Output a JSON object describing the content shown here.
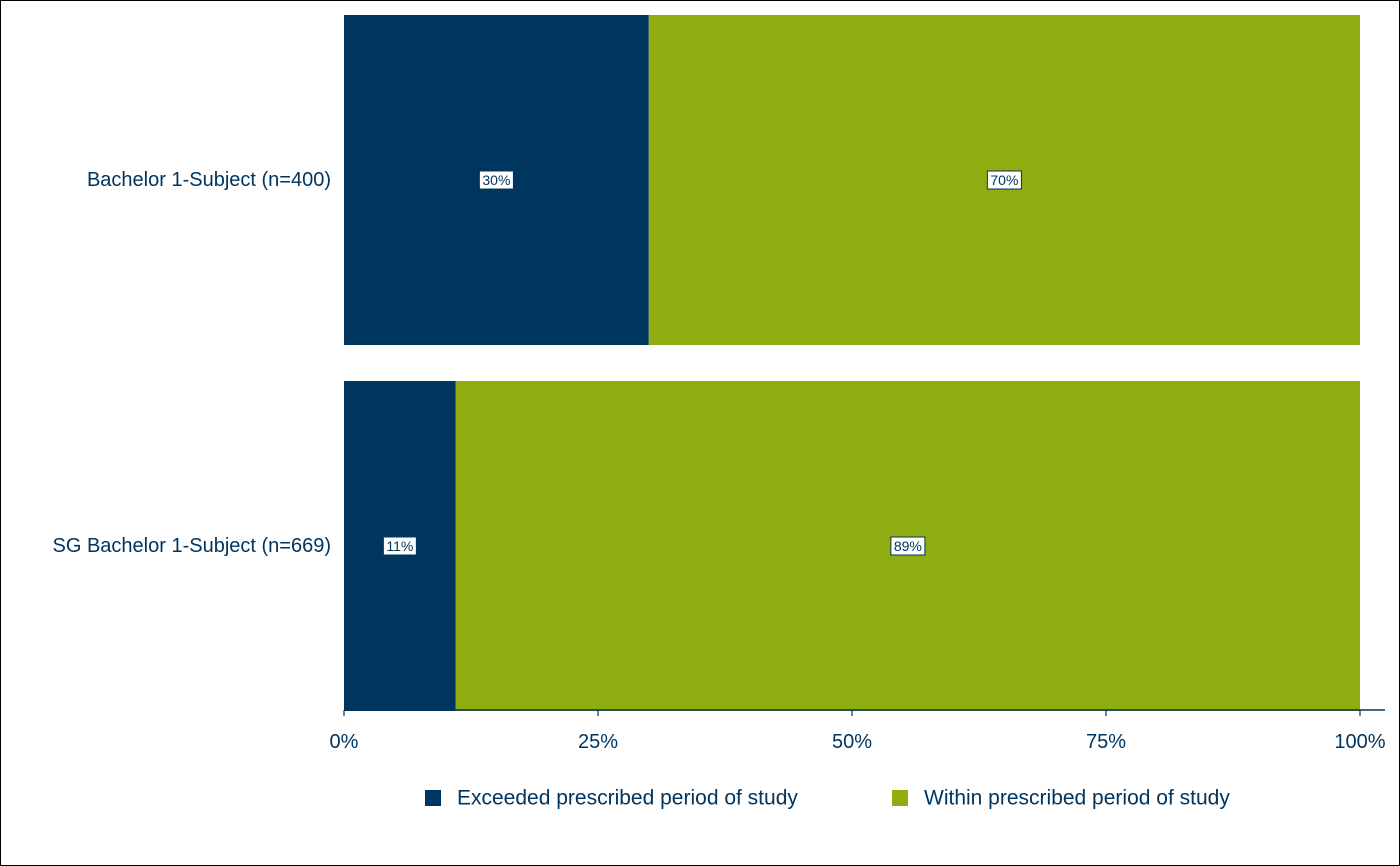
{
  "chart_data": {
    "type": "bar",
    "orientation": "horizontal",
    "stacked": true,
    "title": "",
    "xlabel": "",
    "ylabel": "",
    "categories": [
      "Bachelor 1-Subject (n=400)",
      "SG Bachelor 1-Subject (n=669)"
    ],
    "series": [
      {
        "name": "Exceeded prescribed period of study",
        "values": [
          30,
          11
        ],
        "labels": [
          "30%",
          "11%"
        ],
        "color": "#00355e"
      },
      {
        "name": "Within prescribed period of study",
        "values": [
          70,
          89
        ],
        "labels": [
          "70%",
          "89%"
        ],
        "color": "#8fad10"
      }
    ],
    "xlim": [
      0,
      100
    ],
    "x_ticks": [
      0,
      25,
      50,
      75,
      100
    ],
    "x_tick_labels": [
      "0%",
      "25%",
      "50%",
      "75%",
      "100%"
    ],
    "grid": false,
    "legend_position": "bottom",
    "text_color": "#003560"
  }
}
